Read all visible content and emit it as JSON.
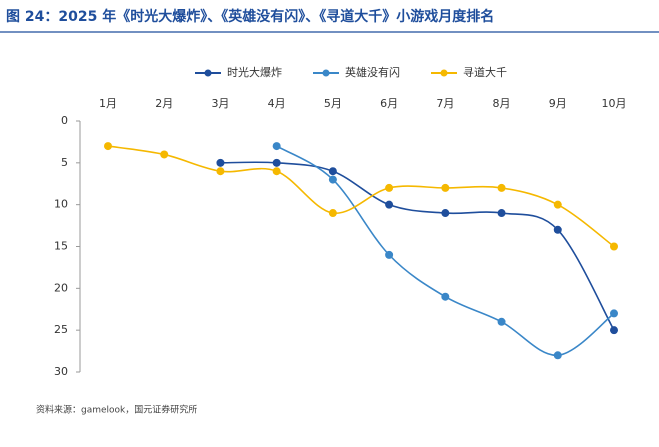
{
  "chart_data": {
    "type": "line",
    "title": "图 24：2025 年《时光大爆炸》、《英雄没有闪》、《寻道大千》小游戏月度排名",
    "categories": [
      "1月",
      "2月",
      "3月",
      "4月",
      "5月",
      "6月",
      "7月",
      "8月",
      "9月",
      "10月"
    ],
    "series": [
      {
        "name": "时光大爆炸",
        "color": "#1f4e9c",
        "values": [
          null,
          null,
          5,
          5,
          6,
          10,
          11,
          11,
          13,
          25
        ]
      },
      {
        "name": "英雄没有闪",
        "color": "#3a87c8",
        "values": [
          null,
          null,
          null,
          3,
          7,
          16,
          21,
          24,
          28,
          23
        ]
      },
      {
        "name": "寻道大千",
        "color": "#f5b800",
        "values": [
          3,
          4,
          6,
          6,
          11,
          8,
          8,
          8,
          10,
          15
        ]
      }
    ],
    "ylim": [
      0,
      30
    ],
    "yticks": [
      0,
      5,
      10,
      15,
      20,
      25,
      30
    ],
    "y_inverted": true,
    "smooth": true,
    "legend": "top",
    "source": "资料来源：gamelook，国元证券研究所"
  }
}
